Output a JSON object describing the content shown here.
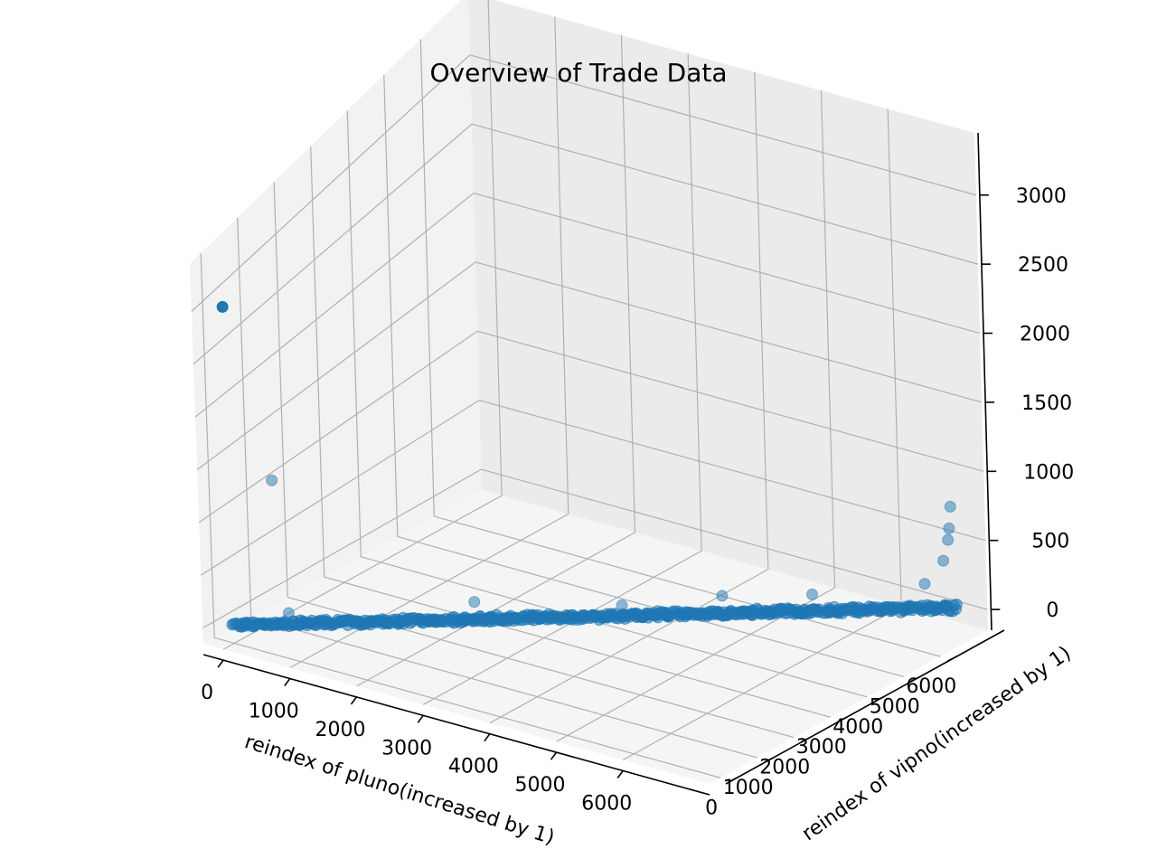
{
  "chart_data": {
    "type": "scatter",
    "projection": "3d",
    "title": "Overview of Trade Data",
    "xlabel": "reindex of pluno(increased by 1)",
    "ylabel": "reindex of vipno(increased by 1)",
    "zlabel": "",
    "xticks": [
      "0",
      "1000",
      "2000",
      "3000",
      "4000",
      "5000",
      "6000"
    ],
    "yticks": [
      "0",
      "1000",
      "2000",
      "3000",
      "4000",
      "5000",
      "6000"
    ],
    "zticks": [
      "0",
      "500",
      "1000",
      "1500",
      "2000",
      "2500",
      "3000"
    ],
    "xlim": [
      -300,
      7300
    ],
    "ylim": [
      -300,
      7300
    ],
    "zlim": [
      -150,
      3450
    ],
    "grid": true,
    "marker_color": "#1f77b4",
    "pane_colors": {
      "left": "#f2f2f2",
      "back": "#ebebeb",
      "floor": "#f5f5f5",
      "grid": "#b0b0b0"
    },
    "series": [
      {
        "description": "dense diagonal band of low-value points (x ≈ y)",
        "x": [
          0,
          700,
          1400,
          2100,
          2800,
          3500,
          4200,
          4900,
          5600,
          6300,
          7000
        ],
        "y": [
          0,
          700,
          1400,
          2100,
          2800,
          3500,
          4200,
          4900,
          5600,
          6300,
          7000
        ],
        "z": [
          0,
          0,
          0,
          0,
          0,
          0,
          0,
          0,
          0,
          0,
          0
        ]
      },
      {
        "description": "individual elevated points",
        "x": [
          0,
          0,
          500,
          2300,
          3800,
          4700,
          5500,
          6700,
          6950,
          6950,
          6900,
          6850
        ],
        "y": [
          0,
          1150,
          600,
          2400,
          3700,
          4800,
          5800,
          6700,
          7000,
          6950,
          7000,
          6950
        ],
        "z": [
          3000,
          1100,
          100,
          150,
          120,
          140,
          100,
          200,
          750,
          600,
          500,
          350
        ]
      }
    ]
  }
}
